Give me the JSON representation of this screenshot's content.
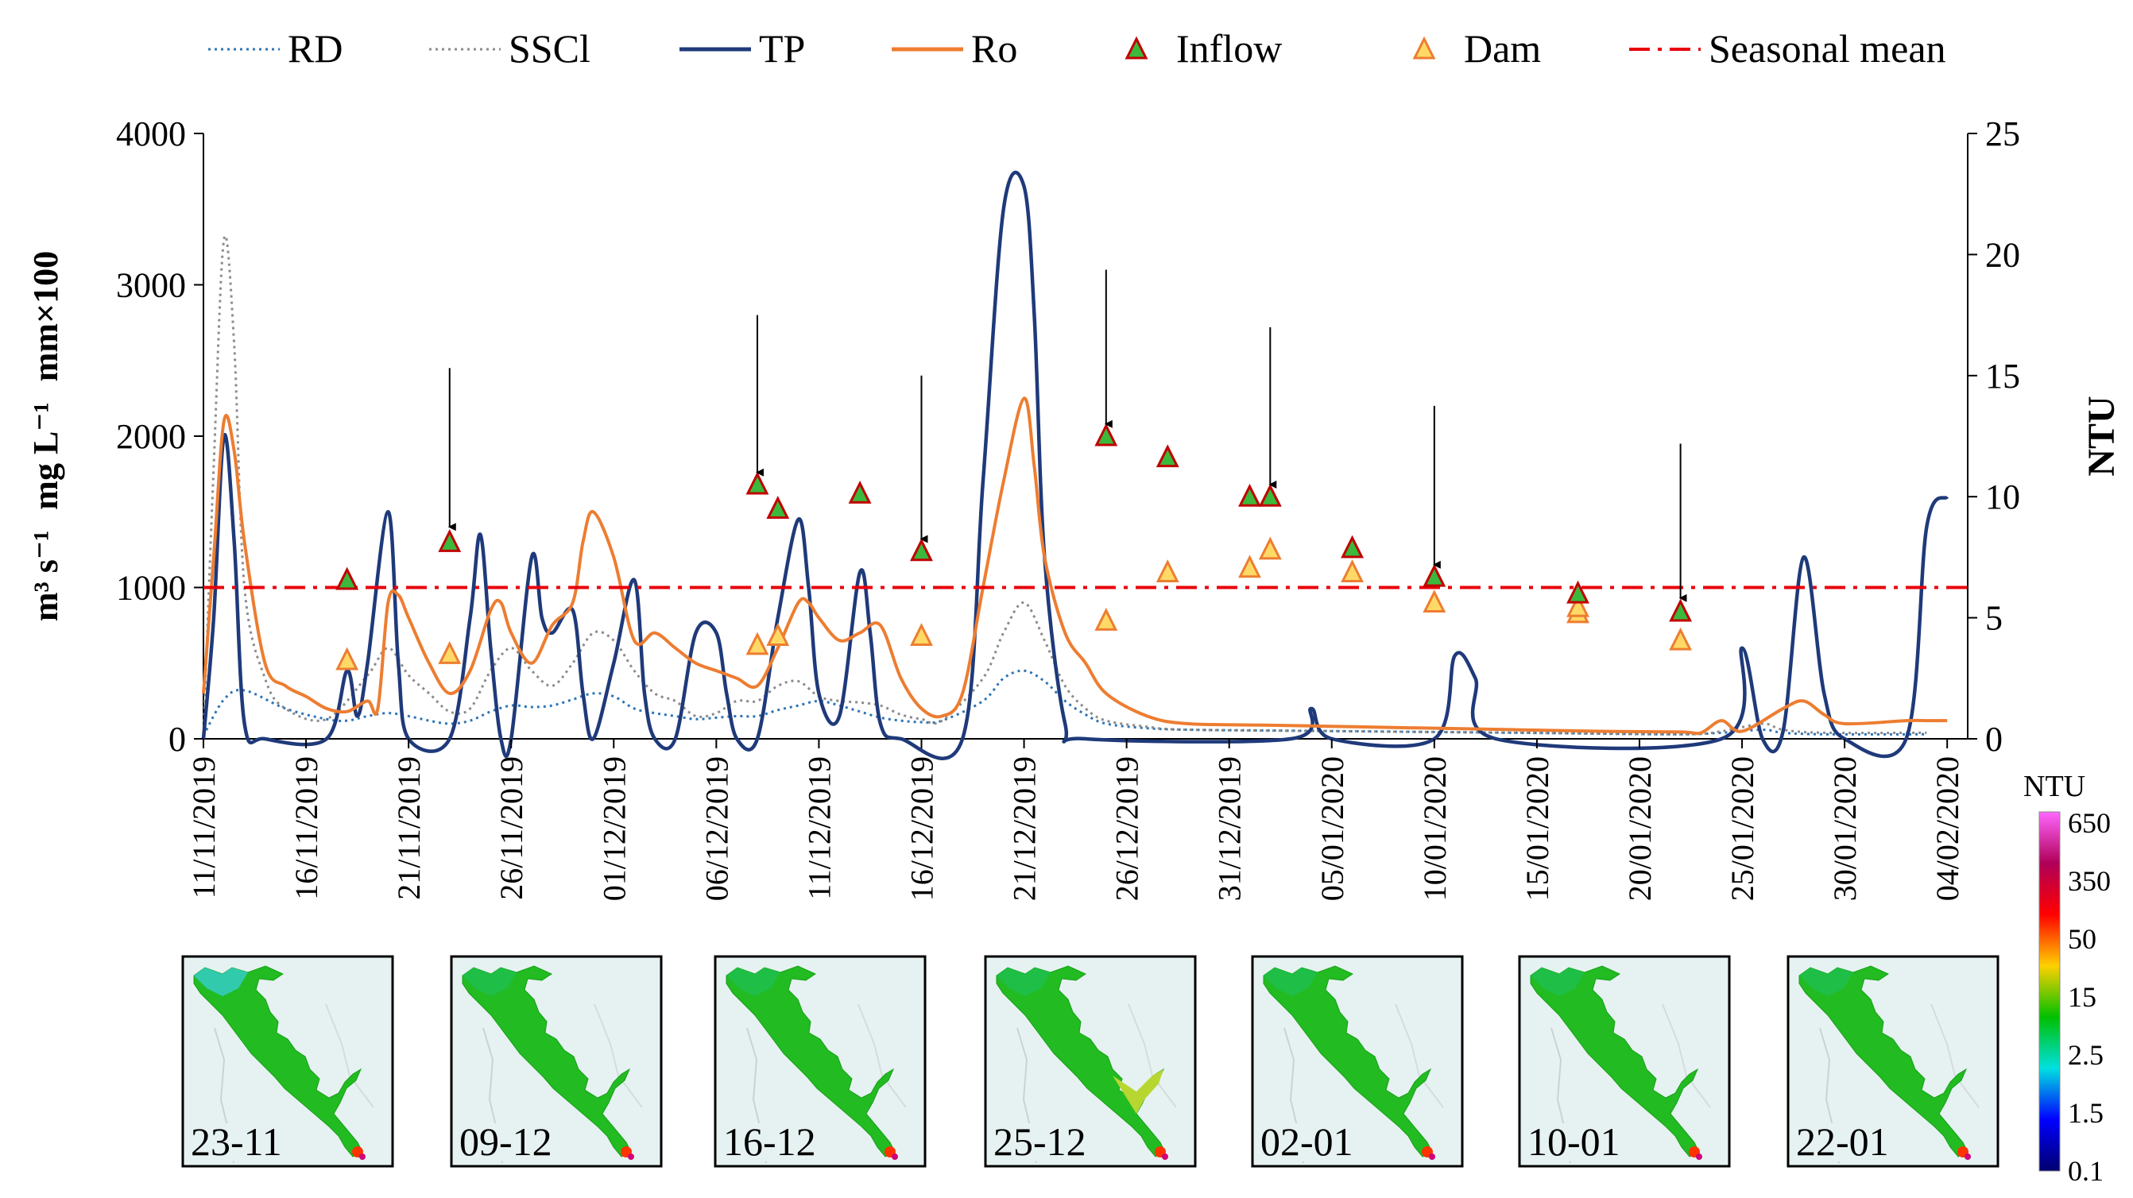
{
  "chart_data": {
    "type": "line",
    "x_start": "2019-11-11",
    "x_end": "2020-02-05",
    "x_ticks": [
      "11/11/2019",
      "16/11/2019",
      "21/11/2019",
      "26/11/2019",
      "01/12/2019",
      "06/12/2019",
      "11/12/2019",
      "16/12/2019",
      "21/12/2019",
      "26/12/2019",
      "31/12/2019",
      "05/01/2020",
      "10/01/2020",
      "15/01/2020",
      "20/01/2020",
      "25/01/2020",
      "30/01/2020",
      "04/02/2020"
    ],
    "y_left": {
      "label_parts": [
        "m³ s⁻¹",
        "mg L⁻¹",
        "mm×100"
      ],
      "ylim": [
        0,
        4000
      ],
      "ticks": [
        "0",
        "1000",
        "2000",
        "3000",
        "4000"
      ]
    },
    "y_right": {
      "label": "NTU",
      "ylim": [
        0,
        25
      ],
      "ticks": [
        "0",
        "5",
        "10",
        "15",
        "20",
        "25"
      ]
    },
    "series": [
      {
        "name": "RD",
        "style": "dotted",
        "color": "#2e75b6",
        "points": [
          [
            0,
            20
          ],
          [
            1,
            260
          ],
          [
            2,
            320
          ],
          [
            4,
            200
          ],
          [
            6,
            130
          ],
          [
            7,
            120
          ],
          [
            8,
            150
          ],
          [
            9,
            170
          ],
          [
            10,
            150
          ],
          [
            11,
            120
          ],
          [
            12,
            100
          ],
          [
            13,
            120
          ],
          [
            14,
            180
          ],
          [
            15,
            220
          ],
          [
            16,
            210
          ],
          [
            17,
            220
          ],
          [
            18,
            260
          ],
          [
            19,
            300
          ],
          [
            20,
            280
          ],
          [
            21,
            200
          ],
          [
            22,
            170
          ],
          [
            23,
            150
          ],
          [
            24,
            130
          ],
          [
            25,
            140
          ],
          [
            26,
            150
          ],
          [
            27,
            150
          ],
          [
            28,
            190
          ],
          [
            29,
            220
          ],
          [
            30,
            250
          ],
          [
            31,
            220
          ],
          [
            32,
            180
          ],
          [
            33,
            140
          ],
          [
            34,
            120
          ],
          [
            35,
            110
          ],
          [
            36,
            120
          ],
          [
            38,
            250
          ],
          [
            39,
            400
          ],
          [
            40,
            450
          ],
          [
            41,
            380
          ],
          [
            42,
            250
          ],
          [
            43,
            160
          ],
          [
            44,
            100
          ],
          [
            46,
            70
          ],
          [
            48,
            60
          ],
          [
            52,
            55
          ],
          [
            56,
            50
          ],
          [
            60,
            45
          ],
          [
            64,
            40
          ],
          [
            68,
            35
          ],
          [
            72,
            30
          ],
          [
            74,
            40
          ],
          [
            76,
            60
          ],
          [
            77,
            40
          ],
          [
            79,
            30
          ],
          [
            84,
            30
          ]
        ]
      },
      {
        "name": "SSCl",
        "style": "dotted",
        "color": "#8c8c8c",
        "points": [
          [
            0,
            30
          ],
          [
            0.5,
            1800
          ],
          [
            1,
            3300
          ],
          [
            1.5,
            2600
          ],
          [
            2,
            1000
          ],
          [
            3,
            400
          ],
          [
            4,
            200
          ],
          [
            6,
            130
          ],
          [
            8,
            420
          ],
          [
            9,
            600
          ],
          [
            10,
            420
          ],
          [
            11,
            300
          ],
          [
            12,
            180
          ],
          [
            13,
            200
          ],
          [
            14,
            450
          ],
          [
            15,
            600
          ],
          [
            16,
            450
          ],
          [
            17,
            350
          ],
          [
            18,
            500
          ],
          [
            19,
            700
          ],
          [
            20,
            650
          ],
          [
            21,
            450
          ],
          [
            22,
            300
          ],
          [
            23,
            250
          ],
          [
            24,
            150
          ],
          [
            25,
            170
          ],
          [
            26,
            250
          ],
          [
            27,
            250
          ],
          [
            28,
            350
          ],
          [
            29,
            380
          ],
          [
            30,
            280
          ],
          [
            31,
            250
          ],
          [
            32,
            240
          ],
          [
            33,
            220
          ],
          [
            34,
            160
          ],
          [
            35,
            130
          ],
          [
            36,
            120
          ],
          [
            38,
            400
          ],
          [
            39,
            700
          ],
          [
            40,
            900
          ],
          [
            41,
            650
          ],
          [
            42,
            350
          ],
          [
            43,
            200
          ],
          [
            44,
            120
          ],
          [
            46,
            80
          ],
          [
            48,
            60
          ],
          [
            56,
            50
          ],
          [
            64,
            40
          ],
          [
            72,
            30
          ],
          [
            74,
            50
          ],
          [
            76,
            100
          ],
          [
            77,
            60
          ],
          [
            79,
            40
          ],
          [
            84,
            40
          ]
        ]
      },
      {
        "name": "TP",
        "style": "solid",
        "color": "#1f3a7a",
        "points": [
          [
            0,
            0
          ],
          [
            0.5,
            800
          ],
          [
            1,
            2000
          ],
          [
            1.5,
            1300
          ],
          [
            2,
            100
          ],
          [
            3,
            0
          ],
          [
            6,
            0
          ],
          [
            7,
            450
          ],
          [
            7.5,
            150
          ],
          [
            8,
            500
          ],
          [
            9,
            1500
          ],
          [
            9.5,
            500
          ],
          [
            10,
            0
          ],
          [
            12,
            0
          ],
          [
            13,
            800
          ],
          [
            13.5,
            1350
          ],
          [
            14,
            600
          ],
          [
            14.5,
            0
          ],
          [
            15,
            0
          ],
          [
            16,
            1200
          ],
          [
            16.5,
            800
          ],
          [
            17,
            700
          ],
          [
            18,
            850
          ],
          [
            18.5,
            300
          ],
          [
            19,
            0
          ],
          [
            20,
            500
          ],
          [
            21,
            1050
          ],
          [
            21.5,
            300
          ],
          [
            22,
            0
          ],
          [
            23,
            0
          ],
          [
            24,
            700
          ],
          [
            25,
            700
          ],
          [
            25.5,
            300
          ],
          [
            26,
            0
          ],
          [
            27,
            0
          ],
          [
            28,
            800
          ],
          [
            29,
            1450
          ],
          [
            29.5,
            1000
          ],
          [
            30,
            300
          ],
          [
            31,
            150
          ],
          [
            32,
            1100
          ],
          [
            32.5,
            700
          ],
          [
            33,
            100
          ],
          [
            34,
            0
          ],
          [
            37,
            0
          ],
          [
            38,
            1700
          ],
          [
            39,
            3500
          ],
          [
            40,
            3650
          ],
          [
            40.5,
            2800
          ],
          [
            41,
            1200
          ],
          [
            42,
            100
          ],
          [
            43,
            0
          ],
          [
            53,
            0
          ],
          [
            54,
            200
          ],
          [
            55,
            0
          ],
          [
            60,
            0
          ],
          [
            61,
            550
          ],
          [
            62,
            400
          ],
          [
            63,
            0
          ],
          [
            74,
            0
          ],
          [
            75,
            600
          ],
          [
            76,
            0
          ],
          [
            77,
            50
          ],
          [
            78,
            1200
          ],
          [
            79,
            300
          ],
          [
            80,
            0
          ],
          [
            83,
            0
          ],
          [
            84,
            1400
          ],
          [
            85,
            1600
          ]
        ]
      },
      {
        "name": "Ro",
        "style": "solid",
        "color": "#ed7d31",
        "points": [
          [
            0,
            300
          ],
          [
            0.5,
            1200
          ],
          [
            1,
            2100
          ],
          [
            1.5,
            1900
          ],
          [
            2,
            1300
          ],
          [
            3,
            500
          ],
          [
            4,
            350
          ],
          [
            5,
            280
          ],
          [
            6,
            200
          ],
          [
            7,
            180
          ],
          [
            8,
            250
          ],
          [
            8.5,
            200
          ],
          [
            9,
            900
          ],
          [
            9.5,
            950
          ],
          [
            10,
            800
          ],
          [
            11,
            500
          ],
          [
            12,
            300
          ],
          [
            13,
            450
          ],
          [
            14,
            850
          ],
          [
            14.5,
            900
          ],
          [
            15,
            700
          ],
          [
            16,
            500
          ],
          [
            17,
            750
          ],
          [
            18,
            900
          ],
          [
            18.5,
            1300
          ],
          [
            19,
            1500
          ],
          [
            20,
            1200
          ],
          [
            21,
            650
          ],
          [
            22,
            700
          ],
          [
            23,
            600
          ],
          [
            24,
            500
          ],
          [
            25,
            450
          ],
          [
            26,
            400
          ],
          [
            27,
            350
          ],
          [
            28,
            600
          ],
          [
            29,
            900
          ],
          [
            29.5,
            900
          ],
          [
            30,
            800
          ],
          [
            31,
            650
          ],
          [
            32,
            700
          ],
          [
            33,
            750
          ],
          [
            34,
            400
          ],
          [
            35,
            200
          ],
          [
            36,
            150
          ],
          [
            37,
            300
          ],
          [
            38,
            1000
          ],
          [
            39,
            1700
          ],
          [
            40,
            2250
          ],
          [
            40.5,
            1800
          ],
          [
            41,
            1200
          ],
          [
            42,
            700
          ],
          [
            43,
            500
          ],
          [
            44,
            300
          ],
          [
            46,
            150
          ],
          [
            48,
            100
          ],
          [
            52,
            90
          ],
          [
            56,
            80
          ],
          [
            60,
            70
          ],
          [
            64,
            60
          ],
          [
            68,
            50
          ],
          [
            72,
            45
          ],
          [
            73,
            40
          ],
          [
            74,
            120
          ],
          [
            75,
            50
          ],
          [
            77,
            200
          ],
          [
            78,
            250
          ],
          [
            79,
            160
          ],
          [
            80,
            100
          ],
          [
            83,
            120
          ],
          [
            84,
            120
          ],
          [
            85,
            120
          ]
        ]
      }
    ],
    "inflow_markers": {
      "name": "Inflow",
      "fill": "#3cb83c",
      "stroke": "#c00000",
      "points": [
        [
          7,
          1050
        ],
        [
          12,
          1300
        ],
        [
          27,
          1680
        ],
        [
          28,
          1520
        ],
        [
          32,
          1620
        ],
        [
          35,
          1240
        ],
        [
          44,
          2000
        ],
        [
          47,
          1860
        ],
        [
          51,
          1600
        ],
        [
          52,
          1600
        ],
        [
          56,
          1260
        ],
        [
          60,
          1070
        ],
        [
          67,
          960
        ],
        [
          72,
          840
        ]
      ]
    },
    "dam_markers": {
      "name": "Dam",
      "fill": "#ffd966",
      "stroke": "#ed7d31",
      "points": [
        [
          7,
          520
        ],
        [
          12,
          560
        ],
        [
          27,
          620
        ],
        [
          28,
          680
        ],
        [
          35,
          680
        ],
        [
          44,
          780
        ],
        [
          47,
          1100
        ],
        [
          51,
          1130
        ],
        [
          52,
          1250
        ],
        [
          56,
          1100
        ],
        [
          60,
          900
        ],
        [
          67,
          830
        ],
        [
          67,
          870
        ],
        [
          72,
          650
        ]
      ]
    },
    "seasonal_mean": {
      "name": "Seasonal mean",
      "color": "#e8000b",
      "y": 1000
    },
    "arrows": [
      {
        "x": 12,
        "from": 2450,
        "to": 1400
      },
      {
        "x": 27,
        "from": 2800,
        "to": 1760
      },
      {
        "x": 35,
        "from": 2400,
        "to": 1320
      },
      {
        "x": 44,
        "from": 3100,
        "to": 2080
      },
      {
        "x": 52,
        "from": 2720,
        "to": 1680
      },
      {
        "x": 60,
        "from": 2200,
        "to": 1150
      },
      {
        "x": 72,
        "from": 1950,
        "to": 930
      }
    ],
    "legend": [
      "RD",
      "SSCl",
      "TP",
      "Ro",
      "Inflow",
      "Dam",
      "Seasonal mean"
    ],
    "colorbar": {
      "title": "NTU",
      "ticks": [
        "650",
        "350",
        "50",
        "15",
        "2.5",
        "1.5",
        "0.1"
      ],
      "colors": [
        "#ff66ff",
        "#b00058",
        "#ff0000",
        "#ffd000",
        "#00c000",
        "#00e0e0",
        "#0000ff",
        "#00006e"
      ]
    },
    "maps": [
      "23-11",
      "09-12",
      "16-12",
      "25-12",
      "02-01",
      "10-01",
      "22-01"
    ]
  }
}
